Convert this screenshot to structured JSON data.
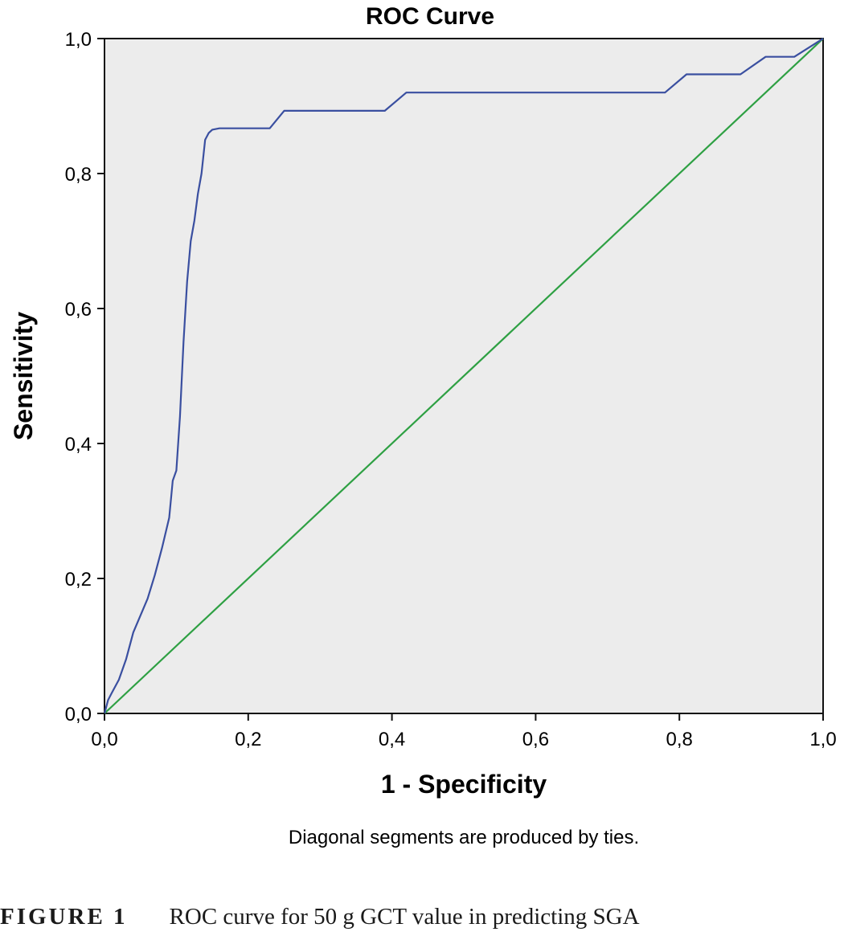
{
  "chart_data": {
    "type": "line",
    "title": "ROC Curve",
    "xlabel": "1 - Specificity",
    "ylabel": "Sensitivity",
    "xlim": [
      0,
      1
    ],
    "ylim": [
      0,
      1
    ],
    "x_ticks": [
      "0,0",
      "0,2",
      "0,4",
      "0,6",
      "0,8",
      "1,0"
    ],
    "y_ticks": [
      "0,0",
      "0,2",
      "0,4",
      "0,6",
      "0,8",
      "1,0"
    ],
    "grid": false,
    "background": "#ececec",
    "note": "Diagonal segments are produced by ties.",
    "series": [
      {
        "color": "#3a4fa0",
        "x": [
          0,
          0.005,
          0.01,
          0.02,
          0.03,
          0.04,
          0.05,
          0.06,
          0.07,
          0.08,
          0.09,
          0.095,
          0.1,
          0.105,
          0.11,
          0.115,
          0.12,
          0.125,
          0.13,
          0.135,
          0.14,
          0.145,
          0.15,
          0.16,
          0.2,
          0.23,
          0.25,
          0.3,
          0.35,
          0.39,
          0.42,
          0.5,
          0.6,
          0.7,
          0.78,
          0.81,
          0.85,
          0.885,
          0.92,
          0.96,
          1.0
        ],
        "y": [
          0,
          0.02,
          0.03,
          0.05,
          0.08,
          0.12,
          0.145,
          0.17,
          0.205,
          0.245,
          0.29,
          0.345,
          0.36,
          0.44,
          0.55,
          0.64,
          0.7,
          0.73,
          0.77,
          0.8,
          0.85,
          0.86,
          0.865,
          0.867,
          0.867,
          0.867,
          0.893,
          0.893,
          0.893,
          0.893,
          0.92,
          0.92,
          0.92,
          0.92,
          0.92,
          0.947,
          0.947,
          0.947,
          0.973,
          0.973,
          1.0
        ]
      },
      {
        "color": "#2ea043",
        "x": [
          0,
          1
        ],
        "y": [
          0,
          1
        ]
      }
    ]
  },
  "caption": {
    "label": "FIGURE 1",
    "text": "ROC curve for 50 g GCT value in predicting SGA"
  }
}
